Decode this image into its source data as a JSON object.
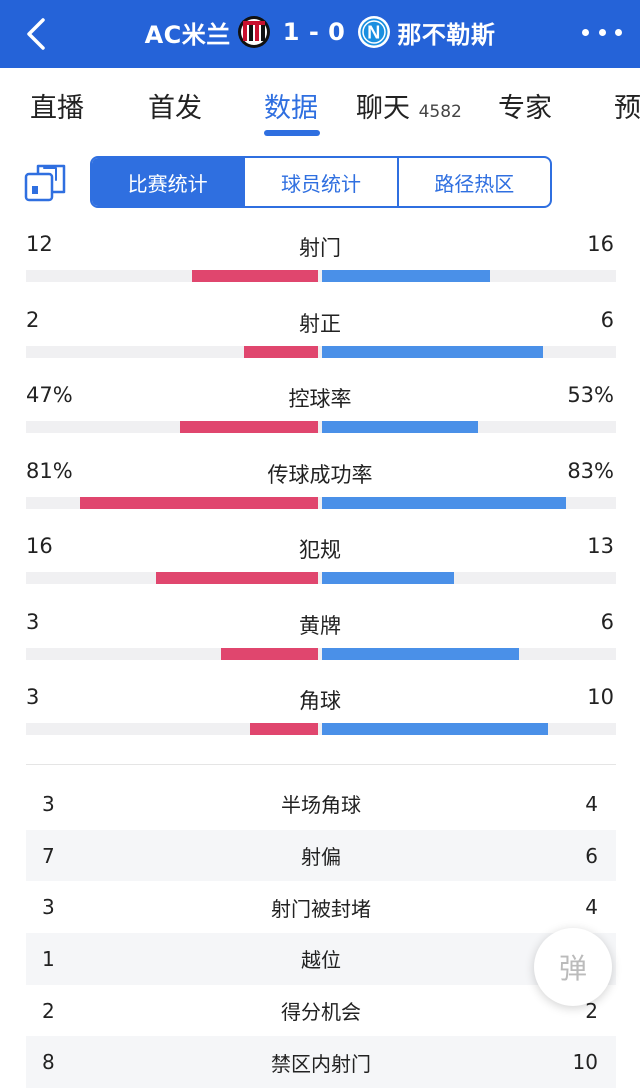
{
  "header": {
    "home_team": "AC米兰",
    "score": "1 - 0",
    "away_team": "那不勒斯",
    "home_badge_letter": "",
    "away_badge_letter": "N"
  },
  "tabs": [
    {
      "label": "直播"
    },
    {
      "label": "首发"
    },
    {
      "label": "数据"
    },
    {
      "label": "聊天",
      "count": "4582"
    },
    {
      "label": "专家"
    },
    {
      "label": "预"
    }
  ],
  "segment": [
    "比赛统计",
    "球员统计",
    "路径热区"
  ],
  "bar_stats": [
    {
      "name": "射门",
      "home": "12",
      "away": "16",
      "home_frac": 0.43,
      "away_frac": 0.57
    },
    {
      "name": "射正",
      "home": "2",
      "away": "6",
      "home_frac": 0.25,
      "away_frac": 0.75
    },
    {
      "name": "控球率",
      "home": "47%",
      "away": "53%",
      "home_frac": 0.47,
      "away_frac": 0.53
    },
    {
      "name": "传球成功率",
      "home": "81%",
      "away": "83%",
      "home_frac": 0.81,
      "away_frac": 0.83
    },
    {
      "name": "犯规",
      "home": "16",
      "away": "13",
      "home_frac": 0.55,
      "away_frac": 0.45
    },
    {
      "name": "黄牌",
      "home": "3",
      "away": "6",
      "home_frac": 0.33,
      "away_frac": 0.67
    },
    {
      "name": "角球",
      "home": "3",
      "away": "10",
      "home_frac": 0.23,
      "away_frac": 0.77
    }
  ],
  "table_stats": [
    {
      "name": "半场角球",
      "home": "3",
      "away": "4"
    },
    {
      "name": "射偏",
      "home": "7",
      "away": "6"
    },
    {
      "name": "射门被封堵",
      "home": "3",
      "away": "4"
    },
    {
      "name": "越位",
      "home": "1",
      "away": ""
    },
    {
      "name": "得分机会",
      "home": "2",
      "away": "2"
    },
    {
      "name": "禁区内射门",
      "home": "8",
      "away": "10"
    }
  ],
  "danmu_label": "弹",
  "colors": {
    "header": "#2563d8",
    "accent": "#2f6fe0",
    "home_bar": "#e0466e",
    "away_bar": "#4a90e8"
  }
}
